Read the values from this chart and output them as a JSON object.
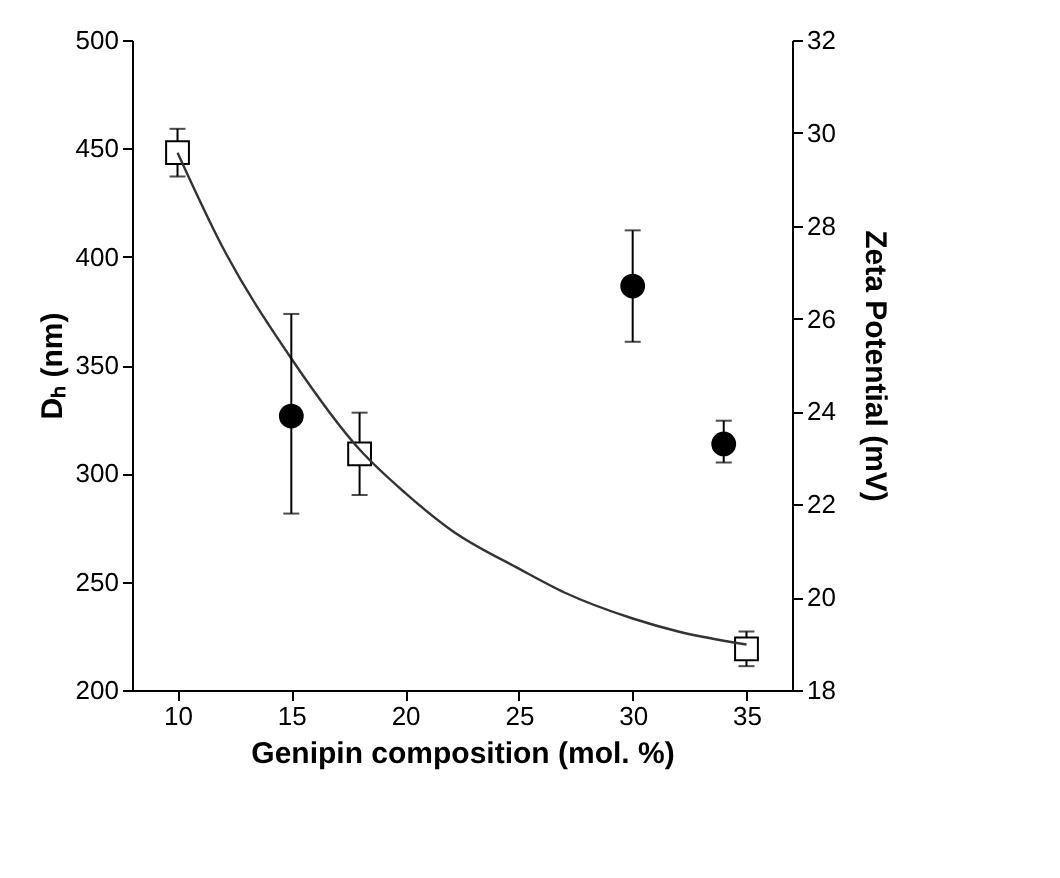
{
  "chart_data": {
    "type": "scatter",
    "xlabel": "Genipin composition (mol. %)",
    "ylabel": "Dₕ (nm)",
    "y2label": "Zeta Potential (mV)",
    "xlim": [
      8,
      37
    ],
    "xticks": [
      10,
      15,
      20,
      25,
      30,
      35
    ],
    "ylim": [
      200,
      500
    ],
    "yticks": [
      200,
      250,
      300,
      350,
      400,
      450,
      500
    ],
    "y2lim": [
      18,
      32
    ],
    "y2ticks": [
      18,
      20,
      22,
      24,
      26,
      28,
      30,
      32
    ],
    "grid": false,
    "series": [
      {
        "type": "scatter",
        "marker": "square",
        "color": "#000000",
        "x": [
          10,
          18,
          35
        ],
        "values": [
          448,
          309,
          219
        ],
        "errors": [
          11,
          19,
          8
        ]
      },
      {
        "type": "scatter",
        "marker": "circle",
        "axis": "y2",
        "color": "#000000",
        "x": [
          15,
          30,
          34
        ],
        "values": [
          23.9,
          26.7,
          23.3
        ],
        "errors": [
          [
            21.8,
            26.1
          ],
          [
            25.5,
            27.9
          ],
          [
            22.9,
            23.8
          ]
        ]
      },
      {
        "type": "line",
        "marker": "none",
        "color": "#333333",
        "x": [
          10,
          12,
          15,
          18,
          20,
          22,
          25,
          27,
          30,
          32,
          35
        ],
        "values": [
          448,
          404,
          353,
          311,
          291,
          274,
          256,
          245,
          233,
          227,
          221
        ]
      }
    ]
  }
}
